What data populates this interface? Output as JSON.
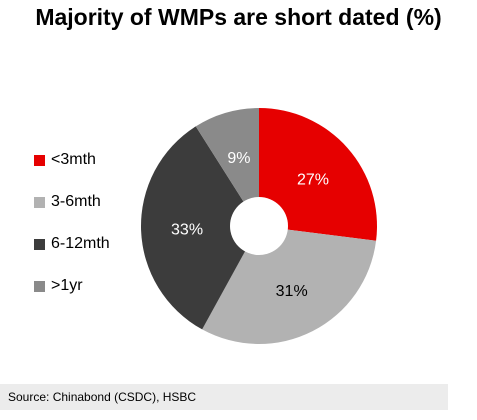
{
  "chart_data": {
    "type": "pie",
    "title": "Majority of WMPs are short dated (%)",
    "donut": true,
    "legend_position": "left",
    "slices": [
      {
        "label": "<3mth",
        "value": 27,
        "data_label": "27%",
        "color": "#e60000",
        "label_color": "#ffffff"
      },
      {
        "label": "3-6mth",
        "value": 31,
        "data_label": "31%",
        "color": "#b2b2b2",
        "label_color": "#000000"
      },
      {
        "label": "6-12mth",
        "value": 33,
        "data_label": "33%",
        "color": "#3c3c3c",
        "label_color": "#ffffff"
      },
      {
        "label": ">1yr",
        "value": 9,
        "data_label": "9%",
        "color": "#8a8a8a",
        "label_color": "#ffffff"
      }
    ]
  },
  "source": "Source: Chinabond (CSDC), HSBC"
}
